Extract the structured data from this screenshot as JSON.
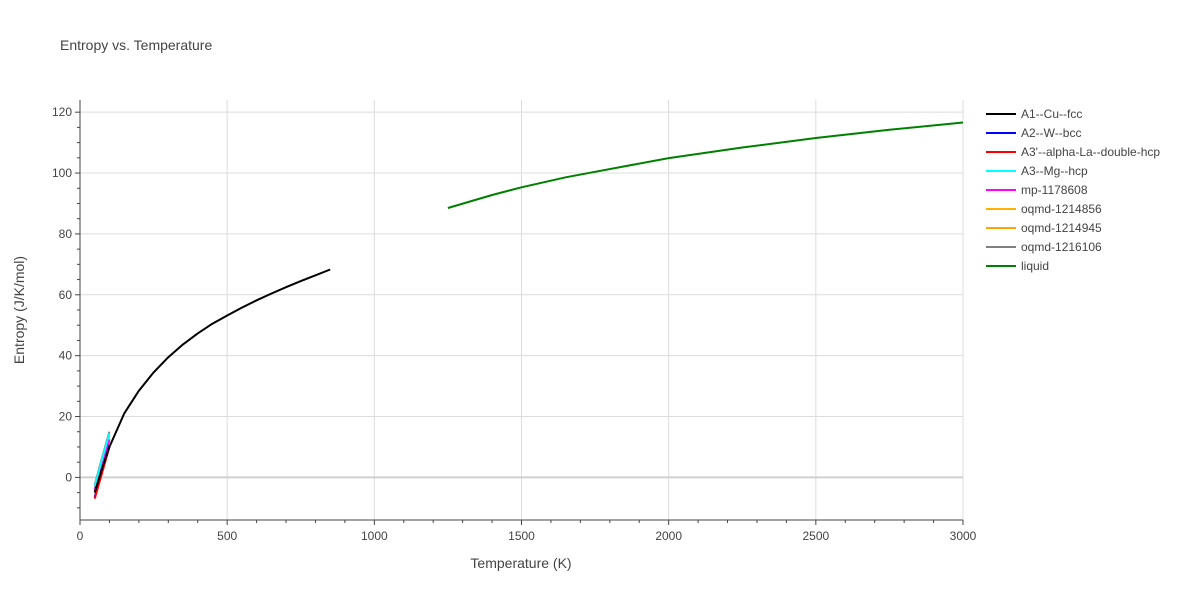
{
  "chart_data": {
    "type": "line",
    "title": "Entropy vs. Temperature",
    "xlabel": "Temperature (K)",
    "ylabel": "Entropy (J/K/mol)",
    "xlim": [
      0,
      3000
    ],
    "ylim": [
      -14,
      124
    ],
    "xticks": [
      0,
      500,
      1000,
      1500,
      2000,
      2500,
      3000
    ],
    "yticks": [
      0,
      20,
      40,
      60,
      80,
      100,
      120
    ],
    "grid": true,
    "legend_position": "right",
    "series": [
      {
        "name": "A1--Cu--fcc",
        "color": "#000000",
        "x": [
          50,
          75,
          100,
          150,
          200,
          250,
          300,
          350,
          400,
          450,
          500,
          550,
          600,
          650,
          700,
          750,
          800,
          850
        ],
        "y": [
          -5,
          3,
          10,
          21,
          28.5,
          34.5,
          39.5,
          43.7,
          47.3,
          50.5,
          53.2,
          55.8,
          58.2,
          60.4,
          62.5,
          64.5,
          66.4,
          68.3
        ]
      },
      {
        "name": "A2--W--bcc",
        "color": "#0000ff",
        "x": [
          50,
          75,
          100
        ],
        "y": [
          -6.5,
          2,
          10.5
        ]
      },
      {
        "name": "A3'--alpha-La--double-hcp",
        "color": "#ff0000",
        "x": [
          50,
          75,
          100
        ],
        "y": [
          -7,
          1.5,
          10
        ]
      },
      {
        "name": "A3--Mg--hcp",
        "color": "#00ffff",
        "x": [
          50,
          75,
          100
        ],
        "y": [
          -3,
          6,
          14.5
        ]
      },
      {
        "name": "mp-1178608",
        "color": "#ff00ff",
        "x": [
          50,
          75,
          100
        ],
        "y": [
          -4,
          4.5,
          12.5
        ]
      },
      {
        "name": "oqmd-1214856",
        "color": "#ffb000",
        "x": [
          50,
          75,
          100
        ],
        "y": [
          -3.5,
          5.5,
          14
        ]
      },
      {
        "name": "oqmd-1214945",
        "color": "#ffa500",
        "x": [
          50,
          75,
          100
        ],
        "y": [
          -4.5,
          4,
          12
        ]
      },
      {
        "name": "oqmd-1216106",
        "color": "#808080",
        "x": [
          50,
          75,
          100
        ],
        "y": [
          -2.5,
          6.5,
          15
        ]
      },
      {
        "name": "liquid",
        "color": "#008000",
        "x": [
          1250,
          1400,
          1500,
          1650,
          1750,
          2000,
          2250,
          2500,
          2750,
          3000
        ],
        "y": [
          88.5,
          92.8,
          95.3,
          98.6,
          100.4,
          104.9,
          108.4,
          111.5,
          114.2,
          116.6
        ]
      }
    ]
  }
}
